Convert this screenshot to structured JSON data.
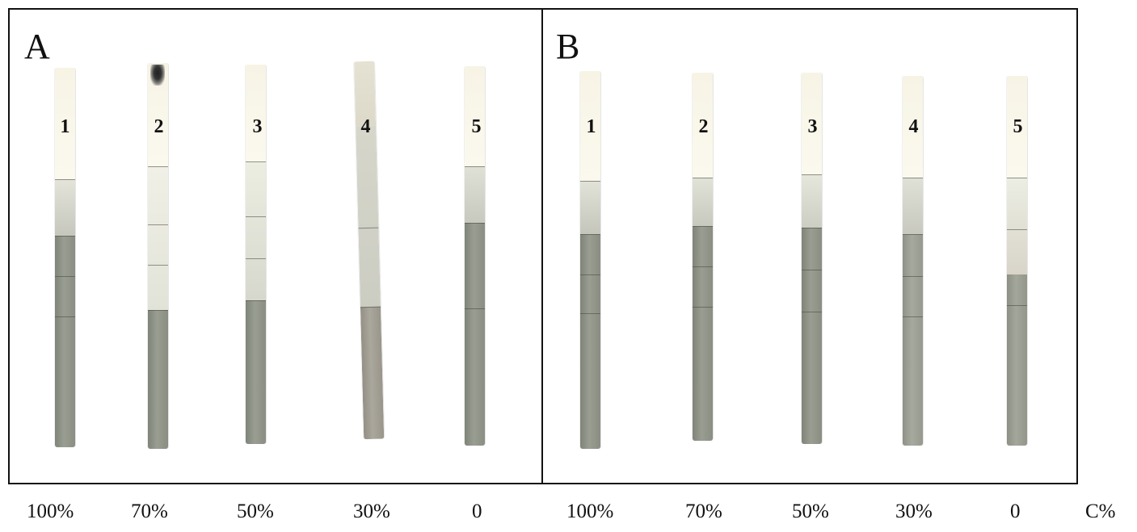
{
  "panels": [
    {
      "label": "A",
      "strips": [
        {
          "number": "1"
        },
        {
          "number": "2"
        },
        {
          "number": "3"
        },
        {
          "number": "4"
        },
        {
          "number": "5"
        }
      ]
    },
    {
      "label": "B",
      "strips": [
        {
          "number": "1"
        },
        {
          "number": "2"
        },
        {
          "number": "3"
        },
        {
          "number": "4"
        },
        {
          "number": "5"
        }
      ]
    }
  ],
  "concentrations_a": [
    "100%",
    "70%",
    "50%",
    "30%",
    "0"
  ],
  "concentrations_b": [
    "100%",
    "70%",
    "50%",
    "30%",
    "0"
  ],
  "unit_label": "C%"
}
